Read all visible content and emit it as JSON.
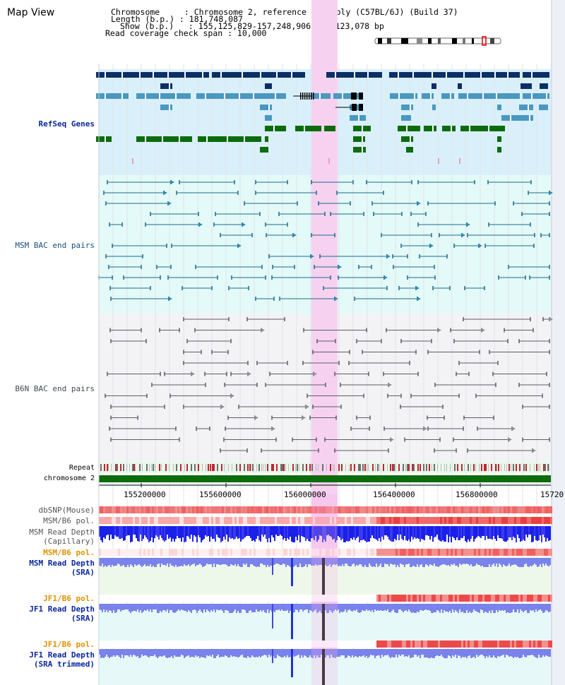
{
  "header": {
    "title": "Map View",
    "info_lines": [
      "Chromosome     : Chromosome 2, reference assembly (C57BL/6J) (Build 37)",
      "Length (b.p.) : 181,748,087",
      "Show (b.p.)   : 155,125,829-157,248,906 : 2,123,078 bp",
      "Read coverage check span : 10,000"
    ]
  },
  "tracks": {
    "refseq": "RefSeq Genes",
    "msm_bac": "MSM BAC end pairs",
    "b6n_bac": "B6N BAC end pairs",
    "repeat": "Repeat",
    "chromosome": "chromosome 2",
    "dbsnp": "dbSNP(Mouse)",
    "msm_b6_pol_1": "MSM/B6 pol.",
    "msm_read_depth_cap_1": "MSM Read Depth",
    "msm_read_depth_cap_2": "(Capillary)",
    "msm_b6_pol_2": "MSM/B6 pol.",
    "msm_read_depth_sra_1": "MSM Read Depth",
    "msm_read_depth_sra_2": "(SRA)",
    "jf1_b6_pol_1": "JF1/B6 pol.",
    "jf1_read_depth_sra_1": "JF1 Read Depth",
    "jf1_read_depth_sra_2": "(SRA)",
    "jf1_b6_pol_2": "JF1/B6 pol.",
    "jf1_read_depth_trim_1": "JF1 Read Depth",
    "jf1_read_depth_trim_2": "(SRA trimmed)"
  },
  "axis": {
    "ticks": [
      "155200000",
      "155600000",
      "156000000",
      "156400000",
      "156800000",
      "15720"
    ]
  },
  "colors": {
    "refseq_bg": "#d9f0fa",
    "msm_bg": "#e3faf8",
    "b6n_bg": "#f3f3f5",
    "highlight": "#f7d2f0",
    "navy": "#0b2f66",
    "steel": "#4a98c2",
    "green": "#0c6c0c",
    "label_blue": "#0a27a0",
    "label_teal": "#18507a",
    "label_orange": "#e09000"
  }
}
